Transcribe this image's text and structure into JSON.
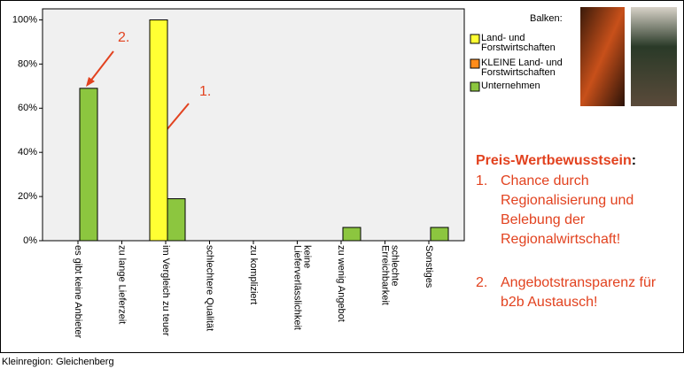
{
  "chart_data": {
    "type": "bar",
    "categories": [
      "es gibt keine Anbieter",
      "zu lange Lieferzeit",
      "im Vergleich zu teuer",
      "schlechtere Qualität",
      "zu kompliziert",
      "keine\nLieferverlässlichkeit",
      "zu wenig Angebot",
      "schlechte\nErreichbarkeit",
      "Sonstiges"
    ],
    "series": [
      {
        "name": "Land- und Forstwirtschaften",
        "color": "#ffff33",
        "values": [
          0,
          0,
          100,
          0,
          0,
          0,
          0,
          0,
          0
        ]
      },
      {
        "name": "KLEINE Land- und Forstwirtschaften",
        "color": "#ff8c1a",
        "values": [
          0,
          0,
          0,
          0,
          0,
          0,
          0,
          0,
          0
        ]
      },
      {
        "name": "Unternehmen",
        "color": "#8cc63f",
        "values": [
          69,
          0,
          19,
          0,
          0,
          0,
          6,
          0,
          6
        ]
      }
    ],
    "ylim": [
      0,
      105
    ],
    "yticks": [
      {
        "value": 0,
        "label": "0%"
      },
      {
        "value": 20,
        "label": "20%"
      },
      {
        "value": 40,
        "label": "40%"
      },
      {
        "value": 60,
        "label": "60%"
      },
      {
        "value": 80,
        "label": "80%"
      },
      {
        "value": 100,
        "label": "100%"
      }
    ],
    "legend_title": "Balken:",
    "annotations": [
      "1.",
      "2."
    ],
    "footer": "Kleinregion: Gleichenberg"
  },
  "panel": {
    "heading": "Preis-Wertbewusstsein",
    "heading_suffix": ":",
    "items": [
      {
        "number": "1.",
        "text": "Chance durch Regionalisierung und Belebung der Regionalwirtschaft!"
      },
      {
        "number": "2.",
        "text": "Angebotstransparenz für b2b Austausch!"
      }
    ]
  }
}
